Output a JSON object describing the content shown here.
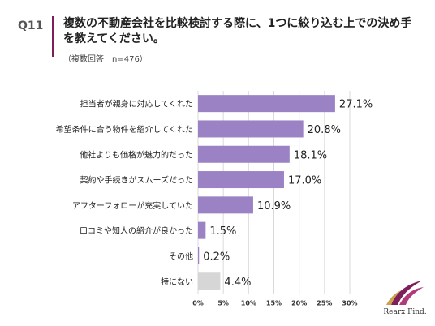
{
  "header": {
    "question_number": "Q11",
    "title": "複数の不動産会社を比較検討する際に、1つに絞り込む上での決め手を教えてください。",
    "note": "（複数回答　n=476）"
  },
  "colors": {
    "accent": "#7e1f5a",
    "bar_main": "#9b82c4",
    "bar_other": "#d6d6d6",
    "grid": "#d9d9d9"
  },
  "chart_data": {
    "type": "bar",
    "orientation": "horizontal",
    "categories": [
      "担当者が親身に対応してくれた",
      "希望条件に合う物件を紹介してくれた",
      "他社よりも価格が魅力的だった",
      "契約や手続きがスムーズだった",
      "アフターフォローが充実していた",
      "口コミや知人の紹介が良かった",
      "その他",
      "特にない"
    ],
    "values": [
      27.1,
      20.8,
      18.1,
      17.0,
      10.9,
      1.5,
      0.2,
      4.4
    ],
    "value_labels": [
      "27.1%",
      "20.8%",
      "18.1%",
      "17.0%",
      "10.9%",
      "1.5%",
      "0.2%",
      "4.4%"
    ],
    "xlim": [
      0,
      30
    ],
    "xticks": [
      "0%",
      "5%",
      "10%",
      "15%",
      "20%",
      "25%",
      "30%"
    ],
    "grid": true
  },
  "logo": {
    "text": "Rearx Find."
  }
}
